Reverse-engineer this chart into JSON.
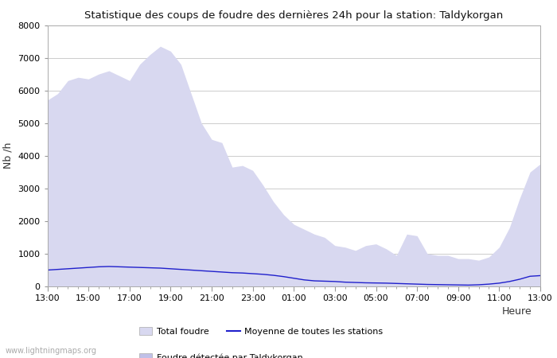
{
  "title": "Statistique des coups de foudre des dernières 24h pour la station: Taldykorgan",
  "xlabel": "Heure",
  "ylabel": "Nb /h",
  "ylim": [
    0,
    8000
  ],
  "yticks": [
    0,
    1000,
    2000,
    3000,
    4000,
    5000,
    6000,
    7000,
    8000
  ],
  "x_labels": [
    "13:00",
    "15:00",
    "17:00",
    "19:00",
    "21:00",
    "23:00",
    "01:00",
    "03:00",
    "05:00",
    "07:00",
    "09:00",
    "11:00",
    "13:00"
  ],
  "background_color": "#ffffff",
  "plot_bg_color": "#ffffff",
  "grid_color": "#cccccc",
  "fill_total_color": "#d8d8f0",
  "fill_taldykorgan_color": "#c0c0e8",
  "line_color": "#2020cc",
  "watermark": "www.lightningmaps.org",
  "legend_total": "Total foudre",
  "legend_line": "Moyenne de toutes les stations",
  "legend_taldykorgan": "Foudre détectée par Taldykorgan",
  "total_foudre": [
    5700,
    5900,
    6300,
    6400,
    6350,
    6500,
    6600,
    6450,
    6300,
    6800,
    7100,
    7350,
    7200,
    6800,
    5900,
    5000,
    4500,
    4400,
    3650,
    3700,
    3550,
    3100,
    2600,
    2200,
    1900,
    1750,
    1600,
    1500,
    1250,
    1200,
    1100,
    1250,
    1300,
    1150,
    950,
    1600,
    1550,
    1000,
    950,
    950,
    850,
    850,
    800,
    900,
    1200,
    1800,
    2700,
    3500,
    3750
  ],
  "foudre_taldykorgan": [
    0,
    0,
    0,
    0,
    0,
    0,
    0,
    0,
    0,
    0,
    0,
    0,
    0,
    0,
    0,
    0,
    0,
    0,
    0,
    0,
    0,
    0,
    0,
    0,
    0,
    0,
    0,
    0,
    0,
    0,
    0,
    0,
    0,
    0,
    0,
    0,
    0,
    0,
    0,
    0,
    0,
    0,
    0,
    0,
    0,
    0,
    0,
    0,
    0
  ],
  "moyenne_stations": [
    500,
    520,
    540,
    560,
    580,
    600,
    610,
    600,
    590,
    580,
    570,
    560,
    540,
    520,
    500,
    480,
    460,
    440,
    420,
    410,
    390,
    370,
    340,
    300,
    250,
    200,
    170,
    160,
    150,
    130,
    120,
    110,
    105,
    100,
    90,
    80,
    70,
    60,
    55,
    50,
    45,
    40,
    50,
    70,
    100,
    150,
    220,
    310,
    330
  ]
}
